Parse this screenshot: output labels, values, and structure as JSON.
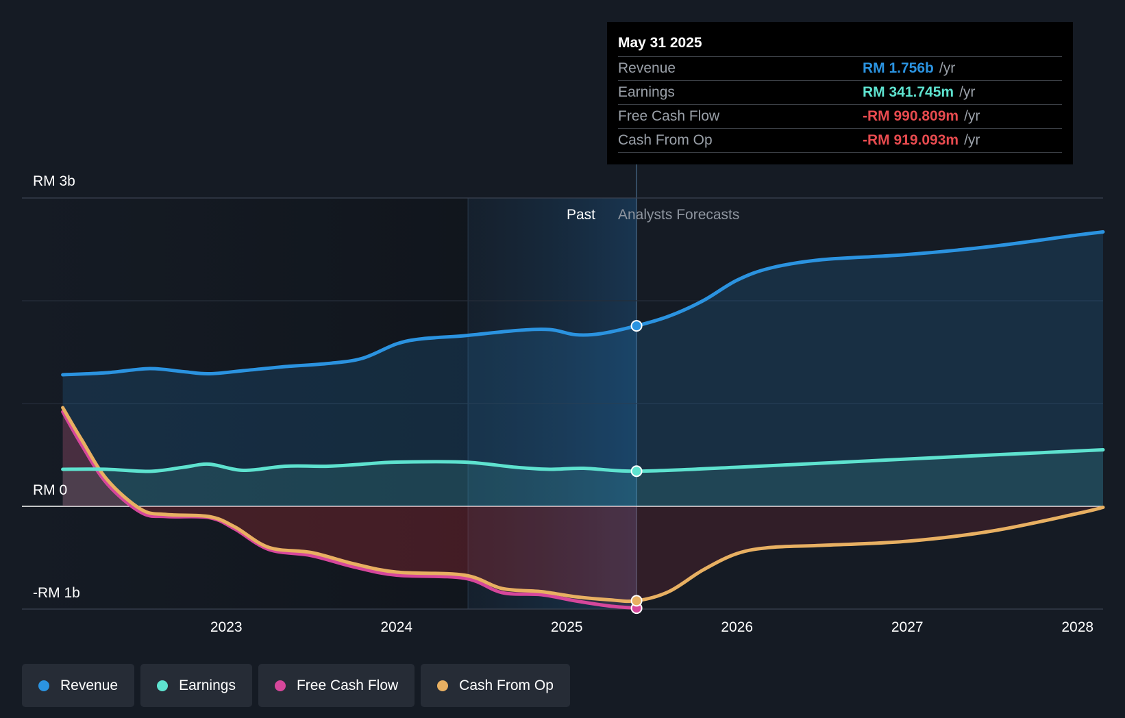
{
  "chart_data": {
    "type": "area",
    "y_axis_labels": [
      "RM 3b",
      "RM 0",
      "-RM 1b"
    ],
    "ylim": [
      -1.0,
      3.0
    ],
    "x_tick_labels": [
      "2023",
      "2024",
      "2025",
      "2026",
      "2027",
      "2028"
    ],
    "x_tick_values": [
      2023,
      2024,
      2025,
      2026,
      2027,
      2028
    ],
    "xlim": [
      2021.8,
      2028.15
    ],
    "past_label": "Past",
    "forecast_label": "Analysts Forecasts",
    "divider_x": 2025.41,
    "highlight_start_x": 2024.42,
    "series": [
      {
        "name": "Revenue",
        "key": "revenue",
        "color": "#2b93e0",
        "points": [
          [
            2022.04,
            1.28
          ],
          [
            2022.3,
            1.3
          ],
          [
            2022.55,
            1.34
          ],
          [
            2022.75,
            1.31
          ],
          [
            2022.9,
            1.29
          ],
          [
            2023.1,
            1.32
          ],
          [
            2023.35,
            1.36
          ],
          [
            2023.6,
            1.39
          ],
          [
            2023.8,
            1.44
          ],
          [
            2024.0,
            1.58
          ],
          [
            2024.15,
            1.63
          ],
          [
            2024.4,
            1.66
          ],
          [
            2024.7,
            1.71
          ],
          [
            2024.9,
            1.72
          ],
          [
            2025.05,
            1.67
          ],
          [
            2025.2,
            1.68
          ],
          [
            2025.41,
            1.756
          ],
          [
            2025.6,
            1.85
          ],
          [
            2025.8,
            2.0
          ],
          [
            2026.0,
            2.2
          ],
          [
            2026.2,
            2.32
          ],
          [
            2026.5,
            2.4
          ],
          [
            2027.0,
            2.45
          ],
          [
            2027.5,
            2.53
          ],
          [
            2028.0,
            2.64
          ],
          [
            2028.15,
            2.67
          ]
        ]
      },
      {
        "name": "Earnings",
        "key": "earnings",
        "color": "#5ee2cf",
        "points": [
          [
            2022.04,
            0.36
          ],
          [
            2022.3,
            0.36
          ],
          [
            2022.55,
            0.34
          ],
          [
            2022.75,
            0.38
          ],
          [
            2022.9,
            0.41
          ],
          [
            2023.1,
            0.35
          ],
          [
            2023.35,
            0.39
          ],
          [
            2023.6,
            0.39
          ],
          [
            2023.8,
            0.41
          ],
          [
            2024.0,
            0.43
          ],
          [
            2024.4,
            0.43
          ],
          [
            2024.7,
            0.38
          ],
          [
            2024.9,
            0.36
          ],
          [
            2025.1,
            0.37
          ],
          [
            2025.41,
            0.342
          ],
          [
            2026.0,
            0.38
          ],
          [
            2026.5,
            0.42
          ],
          [
            2027.0,
            0.46
          ],
          [
            2027.5,
            0.5
          ],
          [
            2028.15,
            0.55
          ]
        ]
      },
      {
        "name": "Free Cash Flow",
        "key": "fcf",
        "color": "#d6479b",
        "points": [
          [
            2022.04,
            0.92
          ],
          [
            2022.15,
            0.6
          ],
          [
            2022.3,
            0.22
          ],
          [
            2022.5,
            -0.06
          ],
          [
            2022.65,
            -0.1
          ],
          [
            2022.9,
            -0.11
          ],
          [
            2023.05,
            -0.22
          ],
          [
            2023.25,
            -0.42
          ],
          [
            2023.5,
            -0.48
          ],
          [
            2023.75,
            -0.59
          ],
          [
            2024.0,
            -0.67
          ],
          [
            2024.4,
            -0.7
          ],
          [
            2024.62,
            -0.84
          ],
          [
            2024.85,
            -0.86
          ],
          [
            2025.05,
            -0.92
          ],
          [
            2025.25,
            -0.97
          ],
          [
            2025.41,
            -0.991
          ]
        ]
      },
      {
        "name": "Cash From Op",
        "key": "cfo",
        "color": "#e8b062",
        "points": [
          [
            2022.04,
            0.96
          ],
          [
            2022.15,
            0.65
          ],
          [
            2022.3,
            0.26
          ],
          [
            2022.5,
            -0.03
          ],
          [
            2022.65,
            -0.08
          ],
          [
            2022.9,
            -0.1
          ],
          [
            2023.05,
            -0.2
          ],
          [
            2023.25,
            -0.4
          ],
          [
            2023.5,
            -0.45
          ],
          [
            2023.75,
            -0.56
          ],
          [
            2024.0,
            -0.64
          ],
          [
            2024.4,
            -0.67
          ],
          [
            2024.62,
            -0.8
          ],
          [
            2024.85,
            -0.83
          ],
          [
            2025.05,
            -0.88
          ],
          [
            2025.25,
            -0.91
          ],
          [
            2025.41,
            -0.919
          ],
          [
            2025.6,
            -0.83
          ],
          [
            2025.8,
            -0.62
          ],
          [
            2026.0,
            -0.46
          ],
          [
            2026.2,
            -0.4
          ],
          [
            2026.5,
            -0.38
          ],
          [
            2027.0,
            -0.34
          ],
          [
            2027.5,
            -0.24
          ],
          [
            2028.0,
            -0.07
          ],
          [
            2028.15,
            -0.01
          ]
        ]
      }
    ]
  },
  "tooltip": {
    "date": "May 31 2025",
    "rows": [
      {
        "label": "Revenue",
        "value": "RM 1.756b",
        "unit": "/yr",
        "color": "#2b93e0"
      },
      {
        "label": "Earnings",
        "value": "RM 341.745m",
        "unit": "/yr",
        "color": "#5ee2cf"
      },
      {
        "label": "Free Cash Flow",
        "value": "-RM 990.809m",
        "unit": "/yr",
        "color": "#e84b4f"
      },
      {
        "label": "Cash From Op",
        "value": "-RM 919.093m",
        "unit": "/yr",
        "color": "#e84b4f"
      }
    ]
  },
  "legend": {
    "items": [
      {
        "label": "Revenue",
        "color": "#2b93e0"
      },
      {
        "label": "Earnings",
        "color": "#5ee2cf"
      },
      {
        "label": "Free Cash Flow",
        "color": "#d6479b"
      },
      {
        "label": "Cash From Op",
        "color": "#e8b062"
      }
    ]
  }
}
